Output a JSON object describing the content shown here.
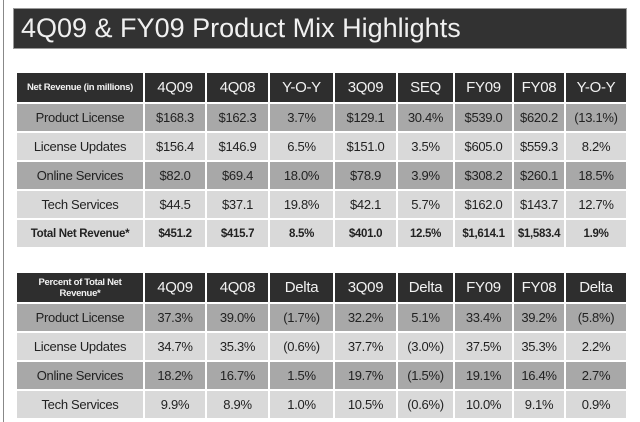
{
  "title": "4Q09 & FY09 Product Mix Highlights",
  "colors": {
    "header_bg": "#2e2e2e",
    "dark_row": "#a8a8a8",
    "light_row": "#d9d9d9"
  },
  "revenue_table": {
    "headers": [
      "Net Revenue (in millions)",
      "4Q09",
      "4Q08",
      "Y-O-Y",
      "3Q09",
      "SEQ",
      "FY09",
      "FY08",
      "Y-O-Y"
    ],
    "rows": [
      [
        "Product License",
        "$168.3",
        "$162.3",
        "3.7%",
        "$129.1",
        "30.4%",
        "$539.0",
        "$620.2",
        "(13.1%)"
      ],
      [
        "License Updates",
        "$156.4",
        "$146.9",
        "6.5%",
        "$151.0",
        "3.5%",
        "$605.0",
        "$559.3",
        "8.2%"
      ],
      [
        "Online Services",
        "$82.0",
        "$69.4",
        "18.0%",
        "$78.9",
        "3.9%",
        "$308.2",
        "$260.1",
        "18.5%"
      ],
      [
        "Tech Services",
        "$44.5",
        "$37.1",
        "19.8%",
        "$42.1",
        "5.7%",
        "$162.0",
        "$143.7",
        "12.7%"
      ],
      [
        "Total Net Revenue*",
        "$451.2",
        "$415.7",
        "8.5%",
        "$401.0",
        "12.5%",
        "$1,614.1",
        "$1,583.4",
        "1.9%"
      ]
    ]
  },
  "percent_table": {
    "headers": [
      "Percent of Total Net Revenue*",
      "4Q09",
      "4Q08",
      "Delta",
      "3Q09",
      "Delta",
      "FY09",
      "FY08",
      "Delta"
    ],
    "rows": [
      [
        "Product License",
        "37.3%",
        "39.0%",
        "(1.7%)",
        "32.2%",
        "5.1%",
        "33.4%",
        "39.2%",
        "(5.8%)"
      ],
      [
        "License Updates",
        "34.7%",
        "35.3%",
        "(0.6%)",
        "37.7%",
        "(3.0%)",
        "37.5%",
        "35.3%",
        "2.2%"
      ],
      [
        "Online Services",
        "18.2%",
        "16.7%",
        "1.5%",
        "19.7%",
        "(1.5%)",
        "19.1%",
        "16.4%",
        "2.7%"
      ],
      [
        "Tech Services",
        "9.9%",
        "8.9%",
        "1.0%",
        "10.5%",
        "(0.6%)",
        "10.0%",
        "9.1%",
        "0.9%"
      ]
    ]
  }
}
